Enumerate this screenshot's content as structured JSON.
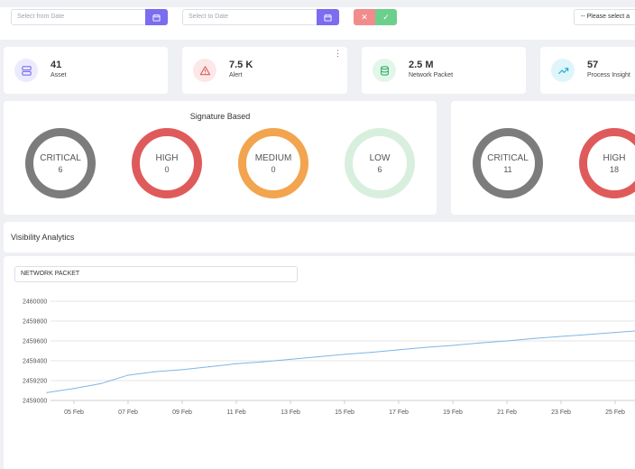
{
  "filters": {
    "from_date_placeholder": "Select from Date",
    "to_date_placeholder": "Select to Date",
    "cancel_symbol": "✕",
    "confirm_symbol": "✓",
    "select_text": "-- Please select a"
  },
  "stats": [
    {
      "value": "41",
      "label": "Asset",
      "icon": "server-icon",
      "color": "#7b6cf0",
      "bg": "#ecebfd"
    },
    {
      "value": "7.5 K",
      "label": "Alert",
      "icon": "alert-triangle-icon",
      "color": "#e05c5c",
      "bg": "#fde8e8"
    },
    {
      "value": "2.5 M",
      "label": "Network Packet",
      "icon": "database-icon",
      "color": "#35b36a",
      "bg": "#e3f6ea"
    },
    {
      "value": "57",
      "label": "Process Insight",
      "icon": "trending-up-icon",
      "color": "#1fb6d6",
      "bg": "#e0f5fa"
    }
  ],
  "signature": {
    "title": "Signature Based",
    "rings": [
      {
        "label": "CRITICAL",
        "count": "6",
        "color": "#7c7c7c"
      },
      {
        "label": "HIGH",
        "count": "0",
        "color": "#df5b5b"
      },
      {
        "label": "MEDIUM",
        "count": "0",
        "color": "#f2a44e"
      },
      {
        "label": "LOW",
        "count": "6",
        "color": "#d8efde"
      }
    ]
  },
  "second_panel": {
    "rings": [
      {
        "label": "CRITICAL",
        "count": "11",
        "color": "#7c7c7c"
      },
      {
        "label": "HIGH",
        "count": "18",
        "color": "#df5b5b"
      }
    ]
  },
  "analytics": {
    "title": "Visibility Analytics",
    "metric": "NETWORK PACKET"
  },
  "chart_data": {
    "type": "line",
    "title": "",
    "xlabel": "",
    "ylabel": "",
    "y_ticks": [
      "2460000",
      "2459800",
      "2459600",
      "2459400",
      "2459200",
      "2459000"
    ],
    "x_ticks": [
      "05 Feb",
      "07 Feb",
      "09 Feb",
      "11 Feb",
      "13 Feb",
      "15 Feb",
      "17 Feb",
      "19 Feb",
      "21 Feb",
      "23 Feb",
      "25 Feb"
    ],
    "ylim": [
      2459000,
      2460000
    ],
    "grid": true,
    "series": [
      {
        "color": "#7db6e8",
        "points": [
          [
            "04 Feb",
            2459080
          ],
          [
            "05 Feb",
            2459120
          ],
          [
            "06 Feb",
            2459170
          ],
          [
            "07 Feb",
            2459255
          ],
          [
            "08 Feb",
            2459290
          ],
          [
            "09 Feb",
            2459310
          ],
          [
            "10 Feb",
            2459340
          ],
          [
            "11 Feb",
            2459370
          ],
          [
            "12 Feb",
            2459390
          ],
          [
            "13 Feb",
            2459415
          ],
          [
            "14 Feb",
            2459440
          ],
          [
            "15 Feb",
            2459465
          ],
          [
            "16 Feb",
            2459485
          ],
          [
            "17 Feb",
            2459510
          ],
          [
            "18 Feb",
            2459535
          ],
          [
            "19 Feb",
            2459555
          ],
          [
            "20 Feb",
            2459580
          ],
          [
            "21 Feb",
            2459600
          ],
          [
            "22 Feb",
            2459625
          ],
          [
            "23 Feb",
            2459645
          ],
          [
            "24 Feb",
            2459665
          ],
          [
            "25 Feb",
            2459685
          ],
          [
            "26 Feb",
            2459705
          ]
        ]
      }
    ]
  }
}
